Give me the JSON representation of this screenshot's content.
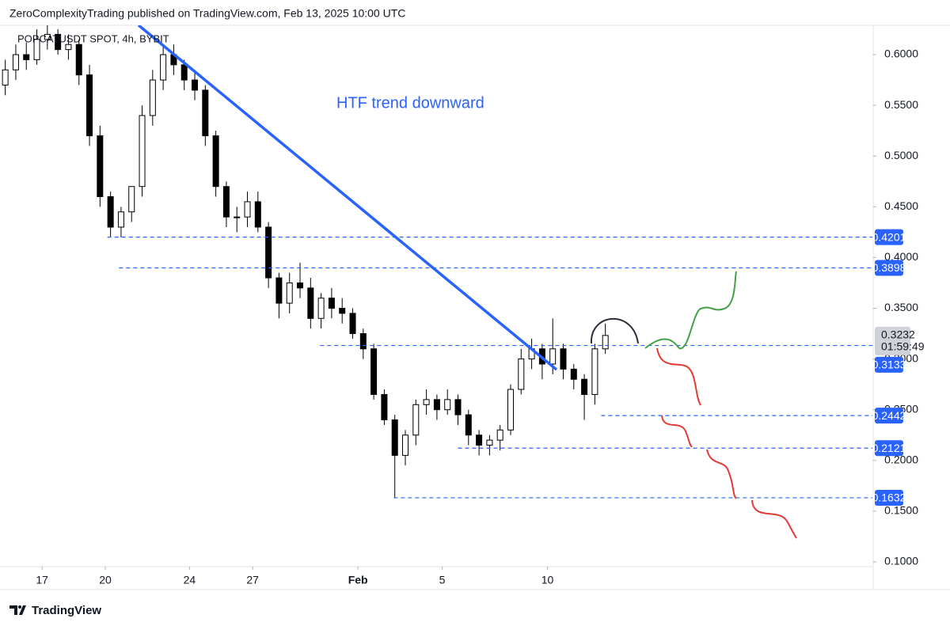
{
  "header": {
    "text": "ZeroComplexityTrading published on TradingView.com, Feb 13, 2025 10:00 UTC"
  },
  "chart_data": {
    "type": "candlestick",
    "symbol": "POPCATUSDT SPOT, 4h, BYBIT",
    "annotation": "HTF trend downward",
    "up_color": "#ffffff",
    "down_color": "#000000",
    "x": [
      15.25,
      15.75,
      16.25,
      16.75,
      17.25,
      17.75,
      18.25,
      18.75,
      19.25,
      19.75,
      20.25,
      20.75,
      21.25,
      21.75,
      22.25,
      22.75,
      23.25,
      23.75,
      24.25,
      24.75,
      25.25,
      25.75,
      26.25,
      26.75,
      27.25,
      27.75,
      28.25,
      28.75,
      29.25,
      29.75,
      30.25,
      30.75,
      31.25,
      31.75,
      32.25,
      32.75,
      33.25,
      33.75,
      34.25,
      34.75,
      35.25,
      35.75,
      36.25,
      36.75,
      37.25,
      37.75,
      38.25,
      38.75,
      39.25,
      39.75,
      40.25,
      40.75,
      41.25,
      41.75,
      42.25,
      42.75,
      43.25,
      43.75
    ],
    "open": [
      0.57,
      0.585,
      0.6,
      0.595,
      0.615,
      0.62,
      0.605,
      0.61,
      0.58,
      0.52,
      0.46,
      0.43,
      0.445,
      0.47,
      0.54,
      0.575,
      0.6,
      0.59,
      0.575,
      0.565,
      0.52,
      0.47,
      0.44,
      0.44,
      0.455,
      0.43,
      0.38,
      0.355,
      0.375,
      0.37,
      0.34,
      0.36,
      0.35,
      0.345,
      0.325,
      0.31,
      0.265,
      0.24,
      0.205,
      0.225,
      0.255,
      0.26,
      0.25,
      0.26,
      0.245,
      0.225,
      0.215,
      0.22,
      0.23,
      0.27,
      0.3,
      0.31,
      0.295,
      0.31,
      0.29,
      0.28,
      0.265,
      0.31
    ],
    "high": [
      0.595,
      0.61,
      0.612,
      0.625,
      0.63,
      0.625,
      0.62,
      0.615,
      0.59,
      0.53,
      0.465,
      0.45,
      0.47,
      0.55,
      0.585,
      0.61,
      0.61,
      0.595,
      0.585,
      0.57,
      0.525,
      0.475,
      0.45,
      0.465,
      0.465,
      0.435,
      0.385,
      0.385,
      0.395,
      0.38,
      0.365,
      0.37,
      0.36,
      0.35,
      0.33,
      0.315,
      0.27,
      0.245,
      0.23,
      0.26,
      0.27,
      0.265,
      0.27,
      0.265,
      0.25,
      0.23,
      0.225,
      0.235,
      0.275,
      0.31,
      0.32,
      0.315,
      0.34,
      0.315,
      0.295,
      0.285,
      0.315,
      0.335
    ],
    "low": [
      0.56,
      0.575,
      0.585,
      0.59,
      0.605,
      0.6,
      0.595,
      0.57,
      0.51,
      0.45,
      0.42,
      0.42,
      0.435,
      0.46,
      0.53,
      0.565,
      0.58,
      0.565,
      0.555,
      0.51,
      0.46,
      0.43,
      0.425,
      0.43,
      0.425,
      0.37,
      0.34,
      0.345,
      0.36,
      0.33,
      0.33,
      0.34,
      0.335,
      0.32,
      0.3,
      0.26,
      0.235,
      0.163,
      0.195,
      0.215,
      0.245,
      0.24,
      0.245,
      0.235,
      0.215,
      0.205,
      0.205,
      0.21,
      0.225,
      0.265,
      0.29,
      0.28,
      0.285,
      0.28,
      0.27,
      0.24,
      0.255,
      0.305
    ],
    "close": [
      0.585,
      0.6,
      0.595,
      0.615,
      0.62,
      0.605,
      0.61,
      0.58,
      0.52,
      0.46,
      0.43,
      0.445,
      0.47,
      0.54,
      0.575,
      0.6,
      0.59,
      0.575,
      0.565,
      0.52,
      0.47,
      0.44,
      0.44,
      0.455,
      0.43,
      0.38,
      0.355,
      0.375,
      0.37,
      0.34,
      0.36,
      0.35,
      0.345,
      0.325,
      0.31,
      0.265,
      0.24,
      0.205,
      0.225,
      0.255,
      0.26,
      0.25,
      0.26,
      0.245,
      0.225,
      0.215,
      0.22,
      0.23,
      0.27,
      0.3,
      0.31,
      0.295,
      0.31,
      0.29,
      0.28,
      0.265,
      0.31,
      0.3232
    ],
    "xlim": [
      15,
      56.47
    ],
    "xticks": [
      20,
      27,
      {
        "value": 32,
        "label": "Feb"
      },
      5.0,
      10,
      17,
      24
    ],
    "ylim": [
      0.0953,
      0.6289
    ],
    "yticks": [
      {
        "value": 0.1,
        "label": "0.1000"
      },
      {
        "value": 0.15,
        "label": "0.1500"
      },
      {
        "value": 0.2,
        "label": "0.2000"
      },
      {
        "value": 0.25,
        "label": "0.2500"
      },
      {
        "value": 0.3,
        "label": "0.3000"
      },
      {
        "value": 0.35,
        "label": "0.3500"
      },
      {
        "value": 0.4,
        "label": "0.4000"
      },
      {
        "value": 0.45,
        "label": "0.4500"
      },
      {
        "value": 0.5,
        "label": "0.5000"
      },
      {
        "value": 0.55,
        "label": "0.5500"
      },
      {
        "value": 0.6,
        "label": "0.6000"
      }
    ],
    "levels": [
      {
        "value": 0.4201,
        "x_start": 20.1
      },
      {
        "value": 0.3898,
        "x_start": 20.65
      },
      {
        "value": 0.3133,
        "x_start": 30.2
      },
      {
        "value": 0.2442,
        "x_start": 43.55
      },
      {
        "value": 0.2121,
        "x_start": 36.75
      },
      {
        "value": 0.1632,
        "x_start": 33.7
      }
    ],
    "level_color": "#2962ff",
    "last_price": {
      "value": 0.3232,
      "countdown": "01:59:49"
    },
    "trendline": {
      "x": [
        21.58,
        41.43
      ],
      "y": [
        0.629,
        0.2895
      ],
      "color": "#2962ff"
    }
  },
  "footer": {
    "brand": "TradingView"
  }
}
